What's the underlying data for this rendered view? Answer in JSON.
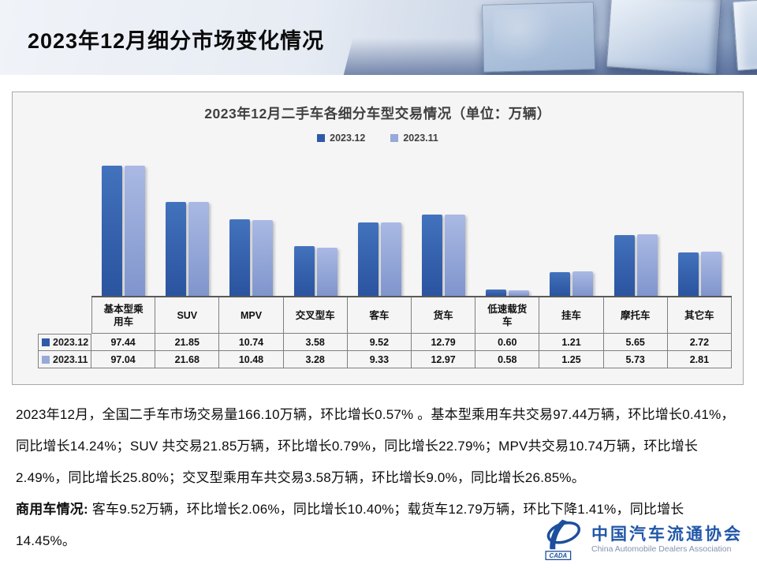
{
  "header": {
    "title": "2023年12月细分市场变化情况"
  },
  "chart_data": {
    "type": "bar",
    "title": "2023年12月二手车各细分车型交易情况（单位：万辆）",
    "unit": "万辆",
    "categories": [
      "基本型乘用车",
      "SUV",
      "MPV",
      "交叉型车",
      "客车",
      "货车",
      "低速载货车",
      "挂车",
      "摩托车",
      "其它车"
    ],
    "series": [
      {
        "name": "2023.12",
        "color": "#2E5AA7",
        "values": [
          97.44,
          21.85,
          10.74,
          3.58,
          9.52,
          12.79,
          0.6,
          1.21,
          5.65,
          2.72
        ]
      },
      {
        "name": "2023.11",
        "color": "#97A9D9",
        "values": [
          97.04,
          21.68,
          10.48,
          3.28,
          9.33,
          12.97,
          0.58,
          1.25,
          5.73,
          2.81
        ]
      }
    ],
    "legend_position": "top-center",
    "y_axis_visible": false,
    "value_scale": "logarithmic-visual",
    "data_table_below_plot": true
  },
  "text": {
    "paragraph1": "2023年12月，全国二手车市场交易量166.10万辆，环比增长0.57% 。基本型乘用车共交易97.44万辆，环比增长0.41%，同比增长14.24%；SUV 共交易21.85万辆，环比增长0.79%，同比增长22.79%；MPV共交易10.74万辆，环比增长2.49%，同比增长25.80%；交叉型乘用车共交易3.58万辆，环比增长9.0%，同比增长26.85%。",
    "paragraph2_label": "商用车情况:",
    "paragraph2_rest": " 客车9.52万辆，环比增长2.06%，同比增长10.40%；载货车12.79万辆，环比下降1.41%，同比增长14.45%。"
  },
  "footer": {
    "org_cn": "中国汽车流通协会",
    "org_en": "China Automobile Dealers Association",
    "emblem_label": "CADA"
  },
  "colors": {
    "series_dark": "#2E5AA7",
    "series_light": "#97A9D9",
    "chart_title": "#404040",
    "baseline": "#595959",
    "table_border": "#7F7F7F",
    "logo_blue": "#1D4F9C",
    "header_gradient_end": "#8198BC"
  }
}
